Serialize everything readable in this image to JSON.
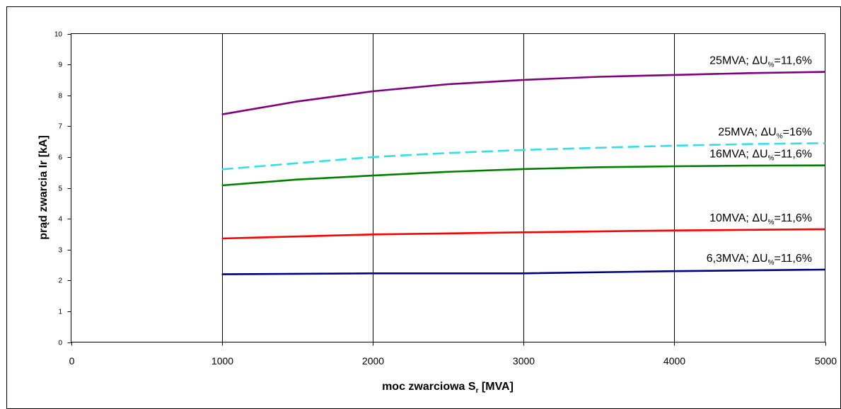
{
  "chart_data": {
    "type": "line",
    "xlabel": "moc zwarciowa S",
    "xlabel_sub": "r",
    "xlabel_unit": " [MVA]",
    "ylabel": "prąd zwarcia Ir [kA]",
    "xlim": [
      0,
      5000
    ],
    "ylim": [
      0,
      10
    ],
    "x_ticks": [
      "0",
      "1000",
      "2000",
      "3000",
      "4000",
      "5000"
    ],
    "y_ticks": [
      "0",
      "1",
      "2",
      "3",
      "4",
      "5",
      "6",
      "7",
      "8",
      "9",
      "10"
    ],
    "grid": "vertical",
    "series": [
      {
        "name_pre": "25MVA; ",
        "name_sym": "ΔU",
        "name_sub": "%",
        "name_post": "=11,6%",
        "color": "#800080",
        "dashed": false,
        "x": [
          1000,
          1500,
          2000,
          2500,
          3000,
          3500,
          4000,
          4500,
          5000
        ],
        "y": [
          7.38,
          7.8,
          8.13,
          8.36,
          8.5,
          8.6,
          8.66,
          8.72,
          8.76
        ]
      },
      {
        "name_pre": "25MVA; ",
        "name_sym": "ΔU",
        "name_sub": "%",
        "name_post": "=16%",
        "color": "#33e0e8",
        "dashed": true,
        "x": [
          1000,
          1500,
          2000,
          2500,
          3000,
          3500,
          4000,
          4500,
          5000
        ],
        "y": [
          5.6,
          5.8,
          6.0,
          6.13,
          6.23,
          6.3,
          6.37,
          6.42,
          6.45
        ]
      },
      {
        "name_pre": "16MVA; ",
        "name_sym": "ΔU",
        "name_sub": "%",
        "name_post": "=11,6%",
        "color": "#008000",
        "dashed": false,
        "x": [
          1000,
          1500,
          2000,
          2500,
          3000,
          3500,
          4000,
          4500,
          5000
        ],
        "y": [
          5.08,
          5.27,
          5.4,
          5.52,
          5.61,
          5.67,
          5.7,
          5.72,
          5.73
        ]
      },
      {
        "name_pre": "10MVA; ",
        "name_sym": "ΔU",
        "name_sub": "%",
        "name_post": "=11,6%",
        "color": "#ff0000",
        "dashed": false,
        "x": [
          1000,
          2000,
          3000,
          4000,
          5000
        ],
        "y": [
          3.36,
          3.49,
          3.56,
          3.62,
          3.66
        ]
      },
      {
        "name_pre": "6,3MVA; ",
        "name_sym": "ΔU",
        "name_sub": "%",
        "name_post": "=11,6%",
        "color": "#000080",
        "dashed": false,
        "x": [
          1000,
          2000,
          3000,
          4000,
          5000
        ],
        "y": [
          2.2,
          2.23,
          2.23,
          2.3,
          2.35
        ]
      }
    ]
  }
}
